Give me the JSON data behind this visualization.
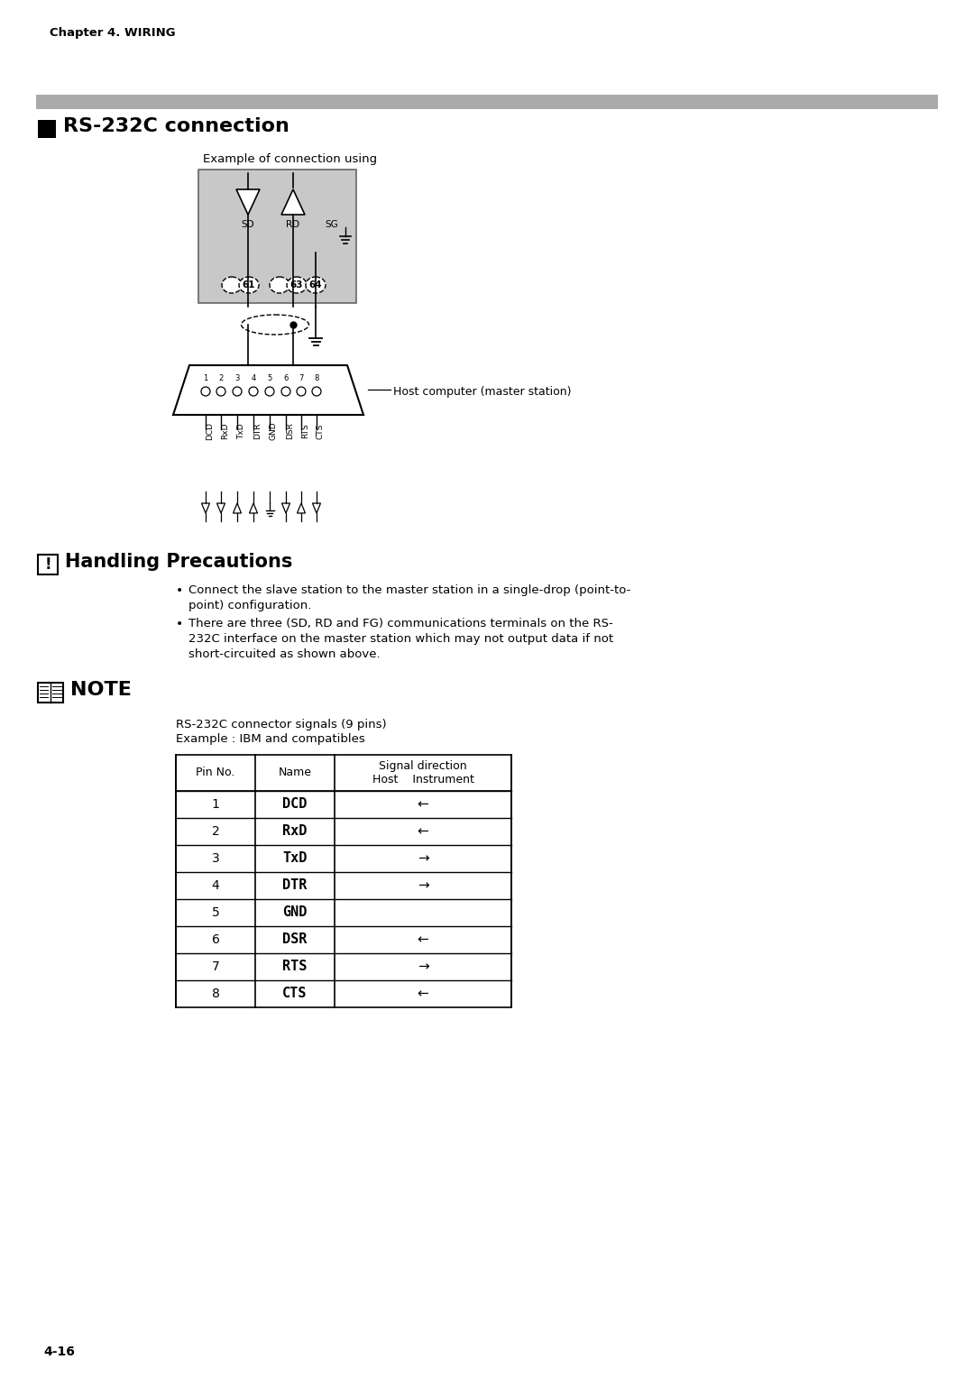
{
  "page_title": "Chapter 4. WIRING",
  "section_title": "RS-232C connection",
  "section2_title": "Handling Precautions",
  "note_title": "NOTE",
  "diagram_caption": "Example of connection using",
  "host_label": "Host computer (master station)",
  "bullet1_line1": "Connect the slave station to the master station in a single-drop (point-to-",
  "bullet1_line2": "point) configuration.",
  "bullet2_line1": "There are three (SD, RD and FG) communications terminals on the RS-",
  "bullet2_line2": "232C interface on the master station which may not output data if not",
  "bullet2_line3": "short-circuited as shown above.",
  "note_sub1": "RS-232C connector signals (9 pins)",
  "note_sub2": "Example : IBM and compatibles",
  "table_rows": [
    [
      "1",
      "DCD",
      "←"
    ],
    [
      "2",
      "RxD",
      "←"
    ],
    [
      "3",
      "TxD",
      "→"
    ],
    [
      "4",
      "DTR",
      "→"
    ],
    [
      "5",
      "GND",
      ""
    ],
    [
      "6",
      "DSR",
      "←"
    ],
    [
      "7",
      "RTS",
      "→"
    ],
    [
      "8",
      "CTS",
      "←"
    ]
  ],
  "page_number": "4-16",
  "bg_color": "#ffffff",
  "gray_bar_color": "#aaaaaa",
  "diagram_bg": "#c8c8c8",
  "table_border_color": "#000000"
}
